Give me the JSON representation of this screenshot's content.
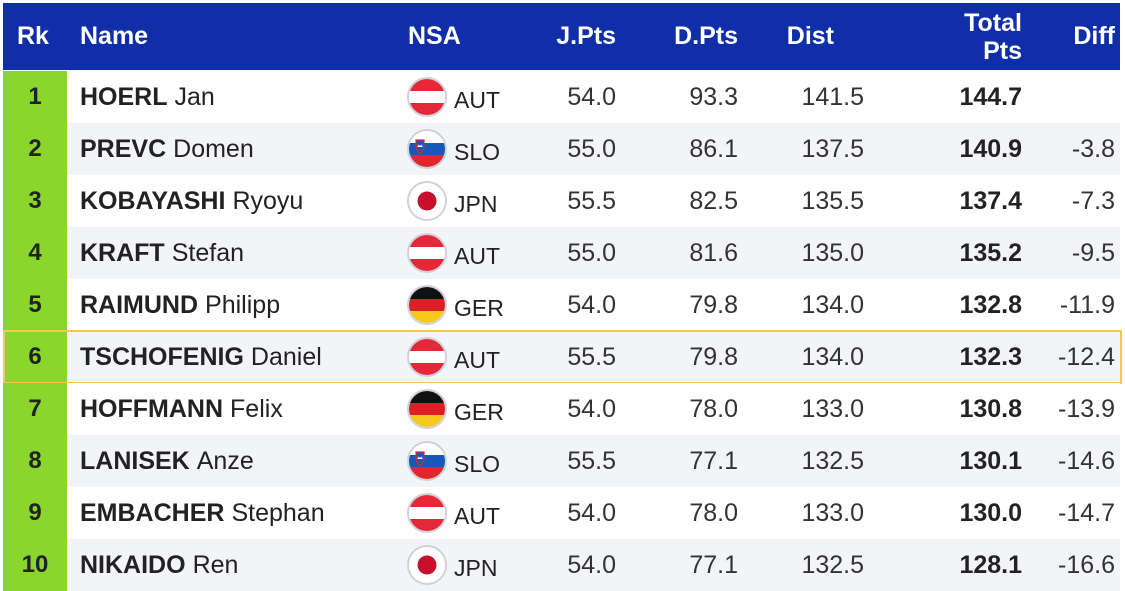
{
  "header": {
    "rk": "Rk",
    "name": "Name",
    "nsa": "NSA",
    "jpts": "J.Pts",
    "dpts": "D.Pts",
    "dist": "Dist",
    "total_line1": "Total",
    "total_line2": "Pts",
    "diff": "Diff"
  },
  "colors": {
    "header_bg": "#0f2ea8",
    "rank_bg": "#8ad62d",
    "highlight_border": "#f5c94c",
    "row_alt": "#f3f4f8"
  },
  "rows": [
    {
      "rk": "1",
      "last": "HOERL",
      "first": "Jan",
      "flag": "aut-flag-icon",
      "nsa": "AUT",
      "jpts": "54.0",
      "dpts": "93.3",
      "dist": "141.5",
      "total": "144.7",
      "diff": ""
    },
    {
      "rk": "2",
      "last": "PREVC",
      "first": "Domen",
      "flag": "slo-flag-icon",
      "nsa": "SLO",
      "jpts": "55.0",
      "dpts": "86.1",
      "dist": "137.5",
      "total": "140.9",
      "diff": "-3.8"
    },
    {
      "rk": "3",
      "last": "KOBAYASHI",
      "first": "Ryoyu",
      "flag": "jpn-flag-icon",
      "nsa": "JPN",
      "jpts": "55.5",
      "dpts": "82.5",
      "dist": "135.5",
      "total": "137.4",
      "diff": "-7.3"
    },
    {
      "rk": "4",
      "last": "KRAFT",
      "first": "Stefan",
      "flag": "aut-flag-icon",
      "nsa": "AUT",
      "jpts": "55.0",
      "dpts": "81.6",
      "dist": "135.0",
      "total": "135.2",
      "diff": "-9.5"
    },
    {
      "rk": "5",
      "last": "RAIMUND",
      "first": "Philipp",
      "flag": "ger-flag-icon",
      "nsa": "GER",
      "jpts": "54.0",
      "dpts": "79.8",
      "dist": "134.0",
      "total": "132.8",
      "diff": "-11.9"
    },
    {
      "rk": "6",
      "last": "TSCHOFENIG",
      "first": "Daniel",
      "flag": "aut-flag-icon",
      "nsa": "AUT",
      "jpts": "55.5",
      "dpts": "79.8",
      "dist": "134.0",
      "total": "132.3",
      "diff": "-12.4",
      "highlighted": true
    },
    {
      "rk": "7",
      "last": "HOFFMANN",
      "first": "Felix",
      "flag": "ger-flag-icon",
      "nsa": "GER",
      "jpts": "54.0",
      "dpts": "78.0",
      "dist": "133.0",
      "total": "130.8",
      "diff": "-13.9"
    },
    {
      "rk": "8",
      "last": "LANISEK",
      "first": "Anze",
      "flag": "slo-flag-icon",
      "nsa": "SLO",
      "jpts": "55.5",
      "dpts": "77.1",
      "dist": "132.5",
      "total": "130.1",
      "diff": "-14.6"
    },
    {
      "rk": "9",
      "last": "EMBACHER",
      "first": "Stephan",
      "flag": "aut-flag-icon",
      "nsa": "AUT",
      "jpts": "54.0",
      "dpts": "78.0",
      "dist": "133.0",
      "total": "130.0",
      "diff": "-14.7"
    },
    {
      "rk": "10",
      "last": "NIKAIDO",
      "first": "Ren",
      "flag": "jpn-flag-icon",
      "nsa": "JPN",
      "jpts": "54.0",
      "dpts": "77.1",
      "dist": "132.5",
      "total": "128.1",
      "diff": "-16.6"
    }
  ]
}
